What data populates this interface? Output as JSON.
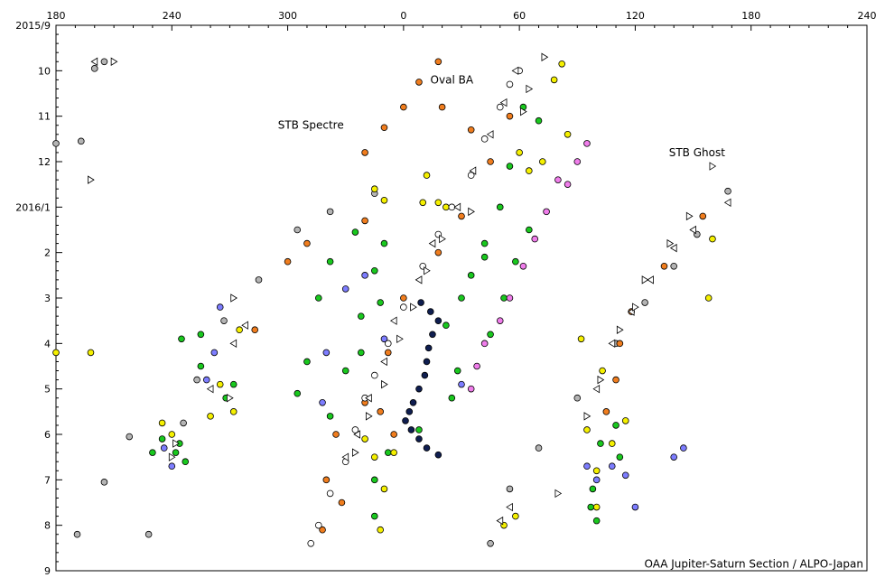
{
  "chart_data": {
    "type": "scatter",
    "title": "",
    "x_axis": {
      "position": "top",
      "range_deg": [
        180,
        240
      ],
      "wraps_through_zero": true,
      "tick_labels": [
        "180",
        "240",
        "300",
        "0",
        "60",
        "120",
        "180",
        "240"
      ]
    },
    "y_axis": {
      "direction": "downward",
      "range": [
        "2015/9",
        "2016/9"
      ],
      "tick_labels": [
        "2015/9",
        "10",
        "11",
        "12",
        "2016/1",
        "2",
        "3",
        "4",
        "5",
        "6",
        "7",
        "8",
        "9"
      ]
    },
    "annotations": [
      {
        "text": "Oval BA",
        "at": {
          "long": 25,
          "month": 10.2
        }
      },
      {
        "text": "STB Spectre",
        "at": {
          "long": 312,
          "month": 11.2
        }
      },
      {
        "text": "STB Ghost",
        "at": {
          "long": 152,
          "month": 11.8
        }
      },
      {
        "text": "OAA Jupiter-Saturn Section / ALPO-Japan",
        "at": {
          "long": 235,
          "month": 8.85
        }
      }
    ],
    "colors": {
      "gray": "#b4b4b4",
      "orange": "#f07d1e",
      "green": "#19c81e",
      "yellow": "#f5f000",
      "blue": "#7d7dff",
      "pink": "#f07deb",
      "navy": "#0f1e50",
      "white": "#ffffff"
    },
    "series": [
      {
        "color_key": "gray",
        "marker": "circle",
        "points": [
          [
            205,
            9.8
          ],
          [
            193,
            11.55
          ],
          [
            246,
            5.75
          ],
          [
            228,
            8.2
          ],
          [
            253,
            4.8
          ],
          [
            267,
            3.5
          ],
          [
            285,
            2.6
          ],
          [
            305,
            1.5
          ],
          [
            322,
            1.1
          ],
          [
            345,
            12.7
          ],
          [
            45,
            8.4
          ],
          [
            55,
            7.2
          ],
          [
            70,
            6.3
          ],
          [
            90,
            5.2
          ],
          [
            110,
            4.0
          ],
          [
            125,
            3.1
          ],
          [
            140,
            2.3
          ],
          [
            152,
            1.6
          ],
          [
            168,
            0.65
          ],
          [
            180,
            11.6
          ],
          [
            200,
            9.95
          ],
          [
            191,
            8.2
          ],
          [
            205,
            7.05
          ],
          [
            218,
            6.05
          ]
        ]
      },
      {
        "color_key": "orange",
        "marker": "circle",
        "points": [
          [
            340,
            11.8
          ],
          [
            350,
            11.25
          ],
          [
            0,
            10.8
          ],
          [
            8,
            10.25
          ],
          [
            18,
            9.8
          ],
          [
            283,
            3.7
          ],
          [
            300,
            2.2
          ],
          [
            310,
            1.8
          ],
          [
            340,
            1.3
          ],
          [
            20,
            10.8
          ],
          [
            35,
            11.3
          ],
          [
            45,
            12.0
          ],
          [
            55,
            11.0
          ],
          [
            30,
            1.2
          ],
          [
            18,
            2.0
          ],
          [
            0,
            3.0
          ],
          [
            352,
            4.2
          ],
          [
            340,
            5.3
          ],
          [
            325,
            6.0
          ],
          [
            320,
            7.0
          ],
          [
            318,
            8.1
          ],
          [
            328,
            7.5
          ],
          [
            348,
            5.5
          ],
          [
            355,
            6.0
          ],
          [
            112,
            4.0
          ],
          [
            118,
            3.3
          ],
          [
            135,
            2.3
          ],
          [
            155,
            1.2
          ],
          [
            110,
            4.8
          ],
          [
            105,
            5.5
          ]
        ]
      },
      {
        "color_key": "green",
        "marker": "circle",
        "points": [
          [
            335,
            1.55
          ],
          [
            322,
            2.2
          ],
          [
            316,
            3.0
          ],
          [
            310,
            4.4
          ],
          [
            305,
            5.1
          ],
          [
            350,
            1.8
          ],
          [
            345,
            2.4
          ],
          [
            338,
            3.4
          ],
          [
            330,
            4.6
          ],
          [
            322,
            5.6
          ],
          [
            348,
            3.1
          ],
          [
            338,
            4.2
          ],
          [
            22,
            3.6
          ],
          [
            30,
            3.0
          ],
          [
            35,
            2.5
          ],
          [
            42,
            2.1
          ],
          [
            28,
            4.6
          ],
          [
            25,
            5.2
          ],
          [
            45,
            3.8
          ],
          [
            52,
            3.0
          ],
          [
            58,
            2.2
          ],
          [
            65,
            1.5
          ],
          [
            62,
            10.8
          ],
          [
            70,
            11.1
          ],
          [
            55,
            12.1
          ],
          [
            50,
            1.0
          ],
          [
            42,
            1.8
          ],
          [
            230,
            6.4
          ],
          [
            235,
            6.1
          ],
          [
            268,
            5.2
          ],
          [
            272,
            4.9
          ],
          [
            255,
            4.5
          ],
          [
            255,
            3.8
          ],
          [
            8,
            5.9
          ],
          [
            345,
            7.8
          ],
          [
            345,
            7.0
          ],
          [
            352,
            6.4
          ],
          [
            245,
            3.9
          ],
          [
            110,
            5.8
          ],
          [
            112,
            6.5
          ],
          [
            102,
            6.2
          ],
          [
            98,
            7.2
          ],
          [
            100,
            7.9
          ],
          [
            97,
            7.6
          ],
          [
            242,
            6.4
          ],
          [
            244,
            6.2
          ],
          [
            247,
            6.6
          ]
        ]
      },
      {
        "color_key": "yellow",
        "marker": "circle",
        "points": [
          [
            350,
            12.85
          ],
          [
            345,
            12.6
          ],
          [
            10,
            12.9
          ],
          [
            12,
            12.3
          ],
          [
            60,
            11.8
          ],
          [
            65,
            12.2
          ],
          [
            72,
            12.0
          ],
          [
            85,
            11.4
          ],
          [
            78,
            10.2
          ],
          [
            82,
            9.85
          ],
          [
            22,
            1.0
          ],
          [
            18,
            0.9
          ],
          [
            235,
            5.75
          ],
          [
            240,
            6.0
          ],
          [
            260,
            5.6
          ],
          [
            265,
            4.9
          ],
          [
            275,
            3.7
          ],
          [
            272,
            5.5
          ],
          [
            340,
            6.1
          ],
          [
            345,
            6.5
          ],
          [
            355,
            6.4
          ],
          [
            348,
            8.1
          ],
          [
            350,
            7.2
          ],
          [
            52,
            8.0
          ],
          [
            58,
            7.8
          ],
          [
            95,
            5.9
          ],
          [
            100,
            6.8
          ],
          [
            115,
            5.7
          ],
          [
            103,
            4.6
          ],
          [
            92,
            3.9
          ],
          [
            180,
            4.2
          ],
          [
            160,
            1.7
          ],
          [
            158,
            3.0
          ],
          [
            198,
            4.2
          ],
          [
            108,
            6.2
          ],
          [
            100,
            7.6
          ]
        ]
      },
      {
        "color_key": "blue",
        "marker": "circle",
        "points": [
          [
            236,
            6.3
          ],
          [
            240,
            6.7
          ],
          [
            258,
            4.8
          ],
          [
            262,
            4.2
          ],
          [
            265,
            3.2
          ],
          [
            330,
            2.8
          ],
          [
            340,
            2.5
          ],
          [
            320,
            4.2
          ],
          [
            318,
            5.3
          ],
          [
            350,
            3.9
          ],
          [
            100,
            7.0
          ],
          [
            108,
            6.7
          ],
          [
            115,
            6.9
          ],
          [
            120,
            7.6
          ],
          [
            140,
            6.5
          ],
          [
            145,
            6.3
          ],
          [
            95,
            6.7
          ],
          [
            30,
            4.9
          ]
        ]
      },
      {
        "color_key": "pink",
        "marker": "circle",
        "points": [
          [
            35,
            5.0
          ],
          [
            38,
            4.5
          ],
          [
            42,
            4.0
          ],
          [
            50,
            3.5
          ],
          [
            55,
            3.0
          ],
          [
            62,
            2.3
          ],
          [
            68,
            1.7
          ],
          [
            74,
            1.1
          ],
          [
            80,
            0.4
          ],
          [
            85,
            12.5
          ],
          [
            90,
            12.0
          ],
          [
            95,
            11.6
          ]
        ]
      },
      {
        "color_key": "navy",
        "marker": "circle",
        "points": [
          [
            9,
            3.1
          ],
          [
            14,
            3.3
          ],
          [
            18,
            3.5
          ],
          [
            15,
            3.8
          ],
          [
            13,
            4.1
          ],
          [
            12,
            4.4
          ],
          [
            11,
            4.7
          ],
          [
            8,
            5.0
          ],
          [
            5,
            5.3
          ],
          [
            3,
            5.5
          ],
          [
            1,
            5.7
          ],
          [
            4,
            5.9
          ],
          [
            8,
            6.1
          ],
          [
            12,
            6.3
          ],
          [
            18,
            6.45
          ]
        ]
      },
      {
        "color_key": "white",
        "marker": "circle",
        "points": [
          [
            60,
            10.0
          ],
          [
            55,
            10.3
          ],
          [
            50,
            10.8
          ],
          [
            42,
            11.5
          ],
          [
            35,
            12.3
          ],
          [
            25,
            1.0
          ],
          [
            18,
            1.6
          ],
          [
            10,
            2.3
          ],
          [
            0,
            3.2
          ],
          [
            352,
            4.0
          ],
          [
            345,
            4.7
          ],
          [
            340,
            5.2
          ],
          [
            335,
            5.9
          ],
          [
            330,
            6.6
          ],
          [
            322,
            7.3
          ],
          [
            316,
            8.0
          ],
          [
            312,
            8.4
          ]
        ]
      },
      {
        "color_key": "white",
        "marker": "triangle-left",
        "points": [
          [
            58,
            10.0
          ],
          [
            52,
            10.7
          ],
          [
            45,
            11.4
          ],
          [
            36,
            12.2
          ],
          [
            28,
            1.0
          ],
          [
            15,
            1.8
          ],
          [
            8,
            2.6
          ],
          [
            355,
            3.5
          ],
          [
            350,
            4.4
          ],
          [
            342,
            5.2
          ],
          [
            336,
            6.0
          ],
          [
            330,
            6.5
          ],
          [
            272,
            4.0
          ],
          [
            278,
            3.6
          ],
          [
            260,
            5.0
          ],
          [
            100,
            5.0
          ],
          [
            108,
            4.0
          ],
          [
            118,
            3.3
          ],
          [
            128,
            2.6
          ],
          [
            140,
            1.9
          ],
          [
            150,
            1.5
          ],
          [
            168,
            0.9
          ],
          [
            200,
            9.8
          ],
          [
            55,
            7.6
          ],
          [
            50,
            7.9
          ]
        ]
      },
      {
        "color_key": "white",
        "marker": "triangle-right",
        "points": [
          [
            73,
            9.7
          ],
          [
            65,
            10.4
          ],
          [
            62,
            10.9
          ],
          [
            35,
            1.1
          ],
          [
            20,
            1.7
          ],
          [
            12,
            2.4
          ],
          [
            5,
            3.2
          ],
          [
            358,
            3.9
          ],
          [
            350,
            4.9
          ],
          [
            342,
            5.6
          ],
          [
            335,
            6.4
          ],
          [
            210,
            9.8
          ],
          [
            198,
            12.4
          ],
          [
            160,
            0.1
          ],
          [
            148,
            1.2
          ],
          [
            138,
            1.8
          ],
          [
            125,
            2.6
          ],
          [
            120,
            3.2
          ],
          [
            112,
            3.7
          ],
          [
            102,
            4.8
          ],
          [
            95,
            5.6
          ],
          [
            80,
            7.3
          ],
          [
            270,
            5.2
          ],
          [
            272,
            3.0
          ],
          [
            242,
            6.2
          ],
          [
            240,
            6.5
          ]
        ]
      }
    ]
  }
}
